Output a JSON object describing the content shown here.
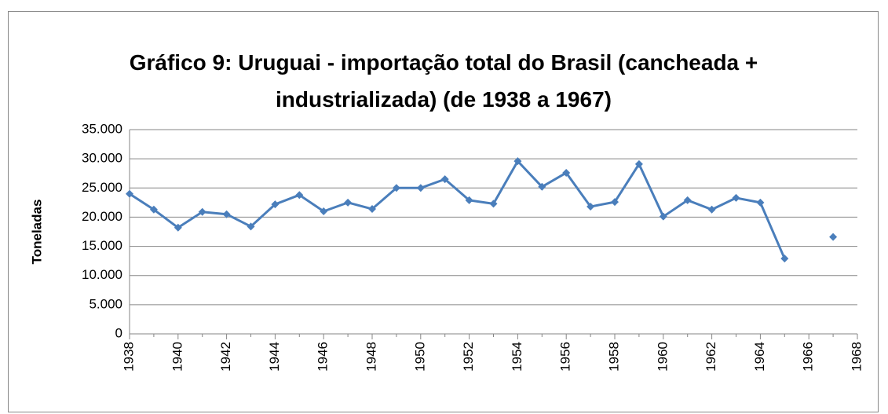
{
  "chart_data": {
    "type": "line",
    "title": "Gráfico 9: Uruguai - importação total do Brasil (cancheada + industrializada) (de 1938 a 1967)",
    "y_label": "Toneladas",
    "x": [
      1938,
      1939,
      1940,
      1941,
      1942,
      1943,
      1944,
      1945,
      1946,
      1947,
      1948,
      1949,
      1950,
      1951,
      1952,
      1953,
      1954,
      1955,
      1956,
      1957,
      1958,
      1959,
      1960,
      1961,
      1962,
      1963,
      1964,
      1965,
      1966,
      1967
    ],
    "series": [
      {
        "name": "Uruguai",
        "color": "#4a7ebb",
        "values": [
          24000,
          21300,
          18200,
          20900,
          20500,
          18400,
          22200,
          23800,
          21000,
          22500,
          21400,
          25000,
          25000,
          26500,
          22900,
          22300,
          29600,
          25200,
          27600,
          21800,
          22600,
          29100,
          20100,
          22900,
          21300,
          23300,
          22500,
          12900,
          null,
          16600
        ]
      }
    ],
    "xlim": [
      1938,
      1968
    ],
    "xticks": [
      1938,
      1940,
      1942,
      1944,
      1946,
      1948,
      1950,
      1952,
      1954,
      1956,
      1958,
      1960,
      1962,
      1964,
      1966,
      1968
    ],
    "ylim": [
      0,
      35000
    ],
    "yticks": [
      0,
      {
        "value": 5000,
        "label": "5.000"
      },
      {
        "value": 10000,
        "label": "10.000"
      },
      {
        "value": 15000,
        "label": "15.000"
      },
      {
        "value": 20000,
        "label": "20.000"
      },
      {
        "value": 25000,
        "label": "25.000"
      },
      {
        "value": 30000,
        "label": "30.000"
      },
      {
        "value": 35000,
        "label": "35.000"
      }
    ],
    "grid": true
  }
}
